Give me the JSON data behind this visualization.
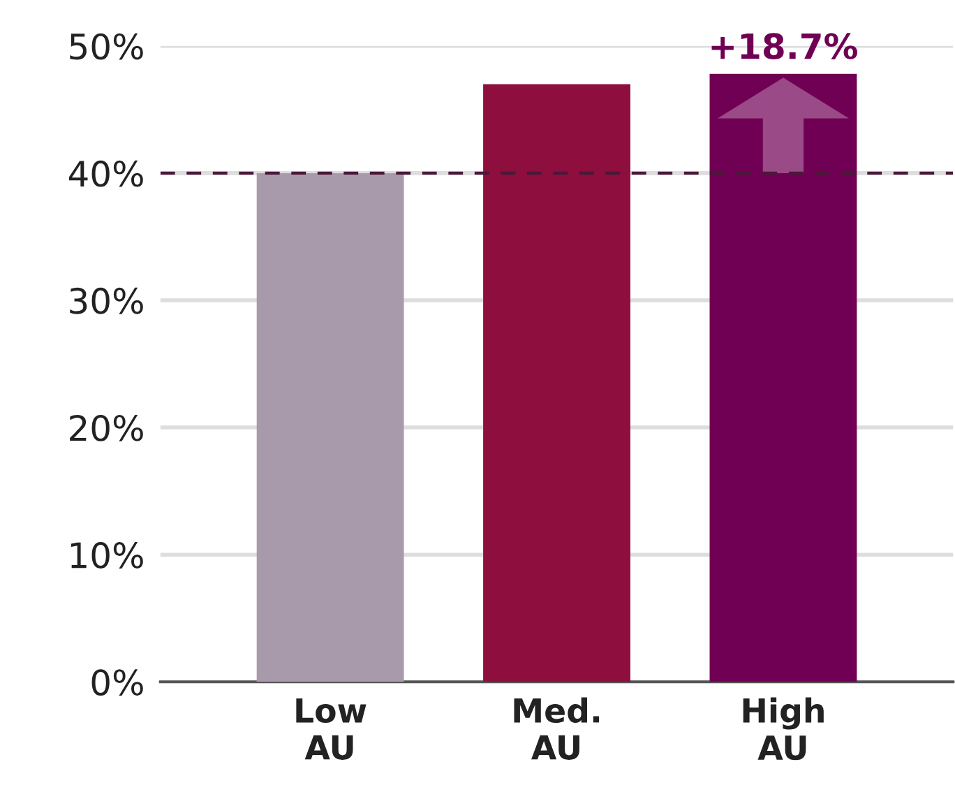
{
  "chart_data": {
    "type": "bar",
    "categories": [
      "Low\nAU",
      "Med.\nAU",
      "High\nAU"
    ],
    "values": [
      40,
      47,
      47.8
    ],
    "colors": [
      "#a99aab",
      "#8e0e3e",
      "#700053"
    ],
    "ylim": [
      0,
      50
    ],
    "yticks": [
      {
        "value": 0,
        "label": "0%"
      },
      {
        "value": 10,
        "label": "10%"
      },
      {
        "value": 20,
        "label": "20%"
      },
      {
        "value": 30,
        "label": "30%"
      },
      {
        "value": 40,
        "label": "40%"
      },
      {
        "value": 50,
        "label": "50%"
      }
    ],
    "grid": "y",
    "ref_lines": [
      {
        "axis": "y",
        "value": 40,
        "label": null,
        "color": "#4a1838",
        "line_style": "dashed"
      }
    ],
    "annotations": [
      {
        "text": "+18.7%",
        "x": "High\nAU",
        "y": 47.8
      }
    ]
  }
}
